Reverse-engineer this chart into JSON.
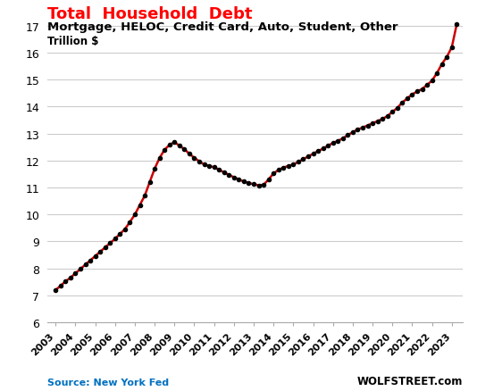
{
  "title": "Total  Household  Debt",
  "subtitle": "Mortgage, HELOC, Credit Card, Auto, Student, Other",
  "ylabel": "Trillion $",
  "source_left": "Source: New York Fed",
  "source_right": "WOLFSTREET.com",
  "title_color": "#ff0000",
  "subtitle_color": "#000000",
  "line_color": "#cc0000",
  "dot_color": "#000000",
  "grid_color": "#cccccc",
  "background_color": "#ffffff",
  "ylim": [
    6,
    17.4
  ],
  "yticks": [
    6,
    7,
    8,
    9,
    10,
    11,
    12,
    13,
    14,
    15,
    16,
    17
  ],
  "years": [
    2003,
    2004,
    2005,
    2006,
    2007,
    2008,
    2009,
    2010,
    2011,
    2012,
    2013,
    2014,
    2015,
    2016,
    2017,
    2018,
    2019,
    2020,
    2021,
    2022,
    2023
  ],
  "quarter_years": [
    2003.0,
    2003.25,
    2003.5,
    2003.75,
    2004.0,
    2004.25,
    2004.5,
    2004.75,
    2005.0,
    2005.25,
    2005.5,
    2005.75,
    2006.0,
    2006.25,
    2006.5,
    2006.75,
    2007.0,
    2007.25,
    2007.5,
    2007.75,
    2008.0,
    2008.25,
    2008.5,
    2008.75,
    2009.0,
    2009.25,
    2009.5,
    2009.75,
    2010.0,
    2010.25,
    2010.5,
    2010.75,
    2011.0,
    2011.25,
    2011.5,
    2011.75,
    2012.0,
    2012.25,
    2012.5,
    2012.75,
    2013.0,
    2013.25,
    2013.5,
    2013.75,
    2014.0,
    2014.25,
    2014.5,
    2014.75,
    2015.0,
    2015.25,
    2015.5,
    2015.75,
    2016.0,
    2016.25,
    2016.5,
    2016.75,
    2017.0,
    2017.25,
    2017.5,
    2017.75,
    2018.0,
    2018.25,
    2018.5,
    2018.75,
    2019.0,
    2019.25,
    2019.5,
    2019.75,
    2020.0,
    2020.25,
    2020.5,
    2020.75,
    2021.0,
    2021.25,
    2021.5,
    2021.75,
    2022.0,
    2022.25,
    2022.5,
    2022.75,
    2023.0,
    2023.25
  ],
  "quarter_values": [
    7.2,
    7.36,
    7.52,
    7.66,
    7.82,
    7.98,
    8.14,
    8.3,
    8.46,
    8.62,
    8.78,
    8.94,
    9.1,
    9.28,
    9.46,
    9.72,
    10.0,
    10.35,
    10.7,
    11.2,
    11.7,
    12.1,
    12.4,
    12.58,
    12.68,
    12.55,
    12.42,
    12.25,
    12.1,
    11.97,
    11.85,
    11.8,
    11.75,
    11.66,
    11.56,
    11.47,
    11.38,
    11.3,
    11.22,
    11.17,
    11.12,
    11.08,
    11.1,
    11.3,
    11.52,
    11.65,
    11.74,
    11.8,
    11.85,
    11.95,
    12.05,
    12.15,
    12.25,
    12.35,
    12.44,
    12.55,
    12.65,
    12.73,
    12.82,
    12.94,
    13.05,
    13.15,
    13.22,
    13.3,
    13.38,
    13.46,
    13.54,
    13.65,
    13.8,
    13.95,
    14.15,
    14.3,
    14.45,
    14.56,
    14.65,
    14.8,
    14.96,
    15.24,
    15.58,
    15.84,
    16.2,
    17.05
  ]
}
